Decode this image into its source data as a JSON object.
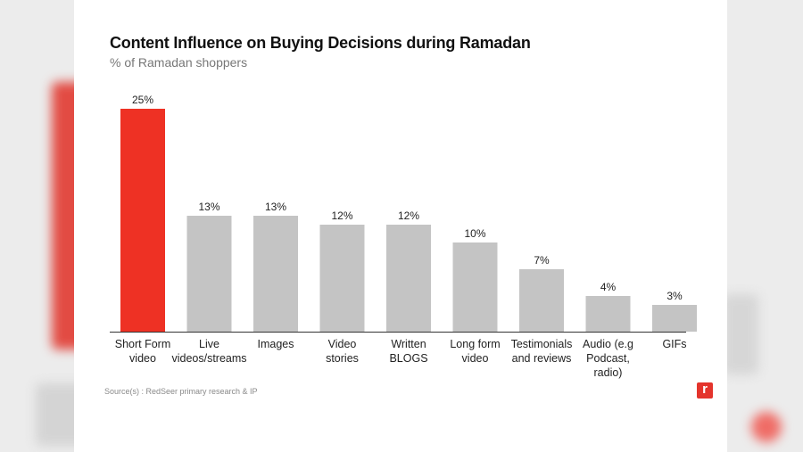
{
  "colors": {
    "highlight": "#ee3124",
    "default": "#c4c4c4",
    "baseline": "#333333"
  },
  "title": "Content Influence on Buying Decisions during Ramadan",
  "subtitle": "% of Ramadan shoppers",
  "source": "Source(s) : RedSeer primary research & IP",
  "logo": "r",
  "chart_data": {
    "type": "bar",
    "title": "Content Influence on Buying Decisions during Ramadan",
    "subtitle": "% of Ramadan shoppers",
    "categories": [
      [
        "Short Form",
        "video"
      ],
      [
        "Live",
        "videos/streams"
      ],
      [
        "Images"
      ],
      [
        "Video",
        "stories"
      ],
      [
        "Written",
        "BLOGS"
      ],
      [
        "Long form",
        "video"
      ],
      [
        "Testimonials",
        "and reviews"
      ],
      [
        "Audio (e.g",
        "Podcast,",
        "radio)"
      ],
      [
        "GIFs"
      ]
    ],
    "values": [
      25,
      13,
      13,
      12,
      12,
      10,
      7,
      4,
      3
    ],
    "value_labels": [
      "25%",
      "13%",
      "13%",
      "12%",
      "12%",
      "10%",
      "7%",
      "4%",
      "3%"
    ],
    "highlight_index": 0,
    "ylim": [
      0,
      25
    ],
    "grid": false,
    "legend": "none"
  }
}
